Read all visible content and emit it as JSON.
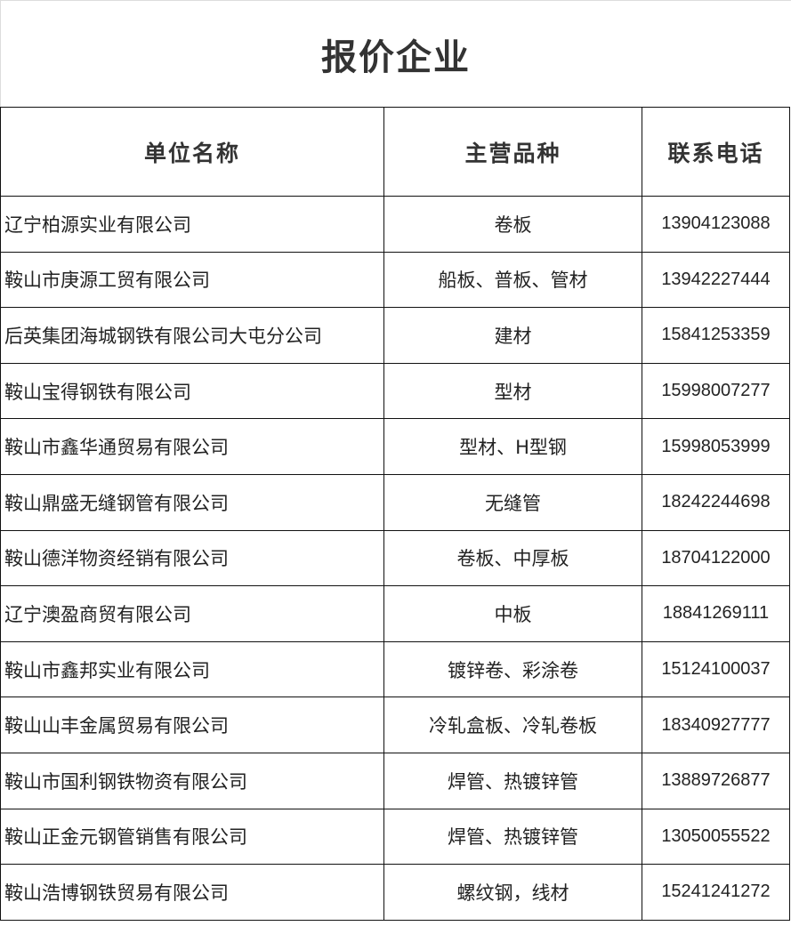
{
  "title": "报价企业",
  "headers": [
    "单位名称",
    "主营品种",
    "联系电话"
  ],
  "rows": [
    {
      "name": "辽宁柏源实业有限公司",
      "products": "卷板",
      "phone": "13904123088"
    },
    {
      "name": "鞍山市庚源工贸有限公司",
      "products": "船板、普板、管材",
      "phone": "13942227444"
    },
    {
      "name": "后英集团海城钢铁有限公司大屯分公司",
      "products": "建材",
      "phone": "15841253359"
    },
    {
      "name": "鞍山宝得钢铁有限公司",
      "products": "型材",
      "phone": "15998007277"
    },
    {
      "name": "鞍山市鑫华通贸易有限公司",
      "products": "型材、H型钢",
      "phone": "15998053999"
    },
    {
      "name": "鞍山鼎盛无缝钢管有限公司",
      "products": "无缝管",
      "phone": "18242244698"
    },
    {
      "name": "鞍山德洋物资经销有限公司",
      "products": "卷板、中厚板",
      "phone": "18704122000"
    },
    {
      "name": "辽宁澳盈商贸有限公司",
      "products": "中板",
      "phone": "18841269111"
    },
    {
      "name": "鞍山市鑫邦实业有限公司",
      "products": "镀锌卷、彩涂卷",
      "phone": "15124100037"
    },
    {
      "name": "鞍山山丰金属贸易有限公司",
      "products": "冷轧盒板、冷轧卷板",
      "phone": "18340927777"
    },
    {
      "name": "鞍山市国利钢铁物资有限公司",
      "products": "焊管、热镀锌管",
      "phone": "13889726877"
    },
    {
      "name": "鞍山正金元钢管销售有限公司",
      "products": "焊管、热镀锌管",
      "phone": "13050055522"
    },
    {
      "name": "鞍山浩博钢铁贸易有限公司",
      "products": "螺纹钢，线材",
      "phone": "15241241272"
    }
  ]
}
